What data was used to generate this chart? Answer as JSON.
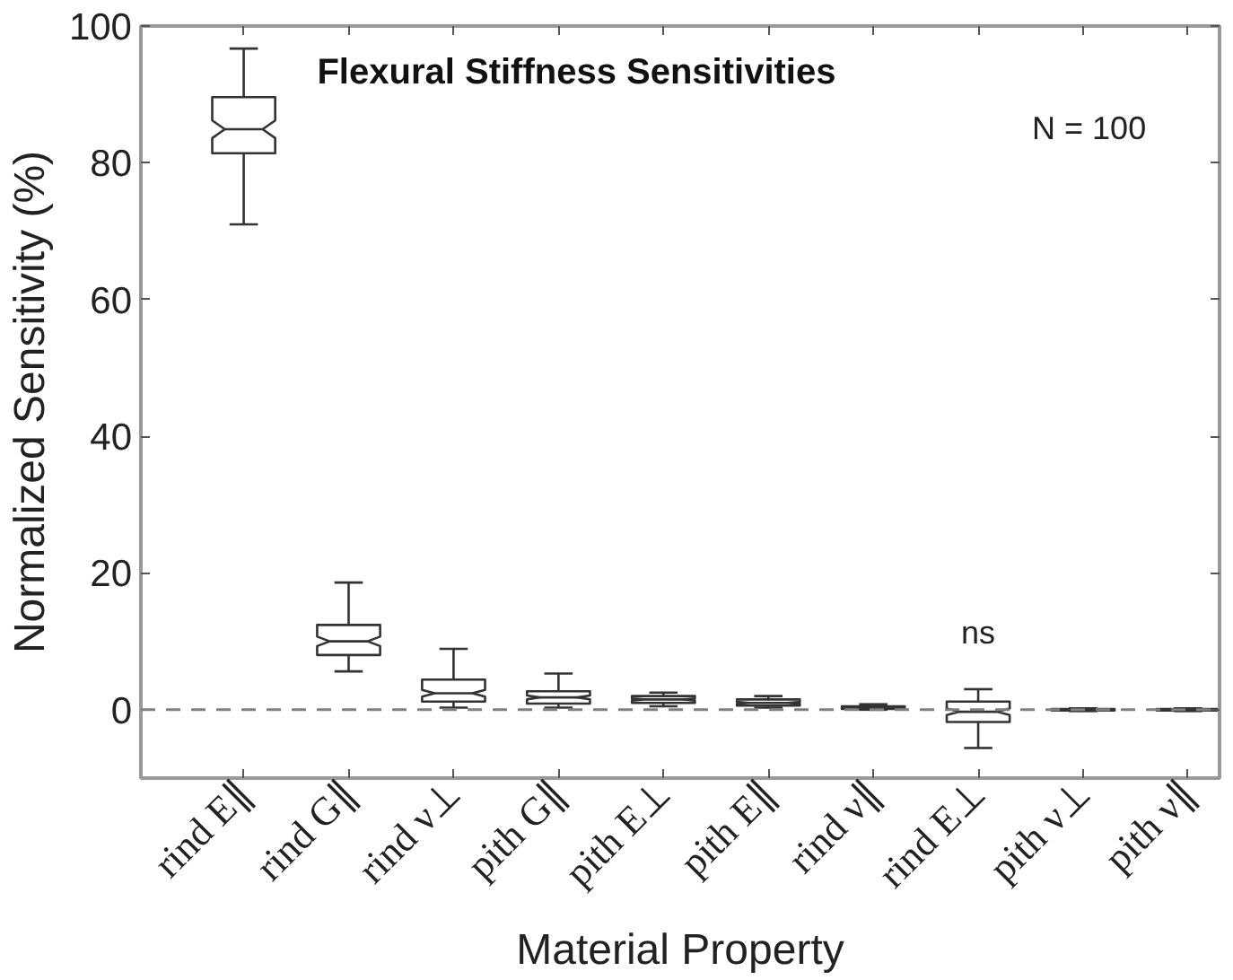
{
  "chart_data": {
    "type": "box",
    "title": "Flexural Stiffness Sensitivities",
    "xlabel": "Material Property",
    "ylabel": "Normalized Sensitivity (%)",
    "categories": [
      "rind E∥",
      "rind G∥",
      "rind ν⊥",
      "pith G∥",
      "pith E⊥",
      "pith E∥",
      "rind ν∥",
      "rind E⊥",
      "pith ν⊥",
      "pith ν∥"
    ],
    "boxes": [
      {
        "low": 71,
        "q1": 81.4,
        "median": 84.9,
        "q3": 89.6,
        "high": 96.7
      },
      {
        "low": 5.6,
        "q1": 8,
        "median": 10,
        "q3": 12.4,
        "high": 18.6
      },
      {
        "low": 0.3,
        "q1": 1.2,
        "median": 2.4,
        "q3": 4.4,
        "high": 8.9
      },
      {
        "low": 0.3,
        "q1": 0.9,
        "median": 1.8,
        "q3": 2.7,
        "high": 5.3
      },
      {
        "low": 0.5,
        "q1": 1,
        "median": 1.5,
        "q3": 2,
        "high": 2.5
      },
      {
        "low": 0.3,
        "q1": 0.6,
        "median": 1,
        "q3": 1.5,
        "high": 2
      },
      {
        "low": 0,
        "q1": 0.1,
        "median": 0.3,
        "q3": 0.5,
        "high": 0.8
      },
      {
        "low": -5.6,
        "q1": -1.8,
        "median": -0.3,
        "q3": 1.2,
        "high": 3
      },
      {
        "low": -0.2,
        "q1": -0.1,
        "median": 0,
        "q3": 0.1,
        "high": 0.2
      },
      {
        "low": -0.2,
        "q1": -0.1,
        "median": 0,
        "q3": 0.1,
        "high": 0.2
      }
    ],
    "color": "#333333",
    "ylim": [
      -10,
      100
    ],
    "yticks": [
      0,
      20,
      40,
      60,
      80,
      100
    ],
    "ref_lines": [
      {
        "axis": "y",
        "value": 0,
        "color": "#808080",
        "line_style": "dashed"
      }
    ],
    "annotations": [
      "N = 100",
      "ns"
    ]
  }
}
